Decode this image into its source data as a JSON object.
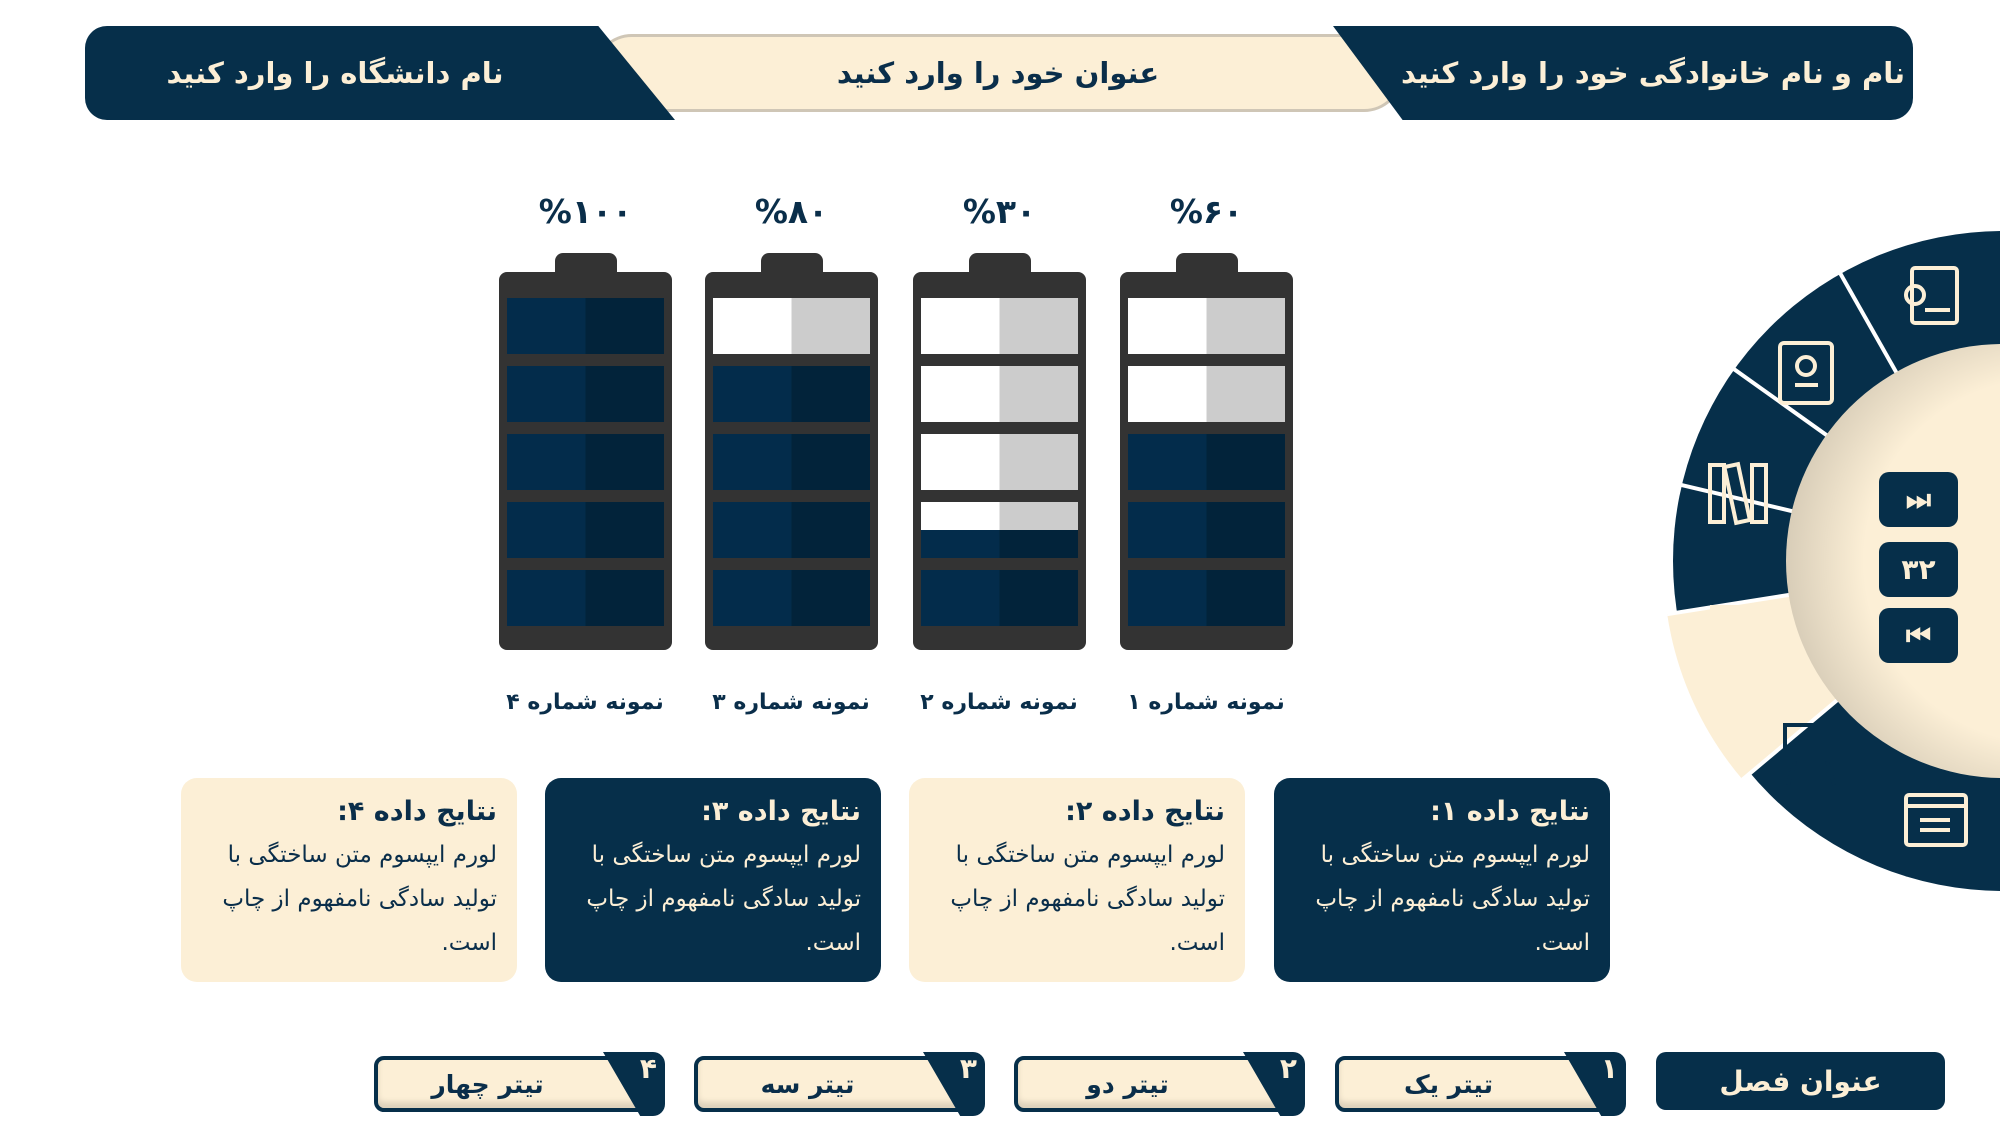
{
  "header": {
    "university": "نام دانشگاه را وارد کنید",
    "title": "عنوان خود را وارد کنید",
    "author": "نام و نام خانوادگی خود را وارد کنید"
  },
  "batteries": [
    {
      "label": "نمونه شماره ۱",
      "percent_label": "%۶۰",
      "value": 60
    },
    {
      "label": "نمونه شماره ۲",
      "percent_label": "%۳۰",
      "value": 30
    },
    {
      "label": "نمونه شماره ۳",
      "percent_label": "%۸۰",
      "value": 80
    },
    {
      "label": "نمونه شماره ۴",
      "percent_label": "%۱۰۰",
      "value": 100
    }
  ],
  "cards": [
    {
      "title": "نتایج داده ۱:",
      "text": "لورم ایپسوم متن ساختگی با تولید سادگی نامفهوم از چاپ است."
    },
    {
      "title": "نتایج داده ۲:",
      "text": "لورم ایپسوم متن ساختگی با تولید سادگی نامفهوم از چاپ است."
    },
    {
      "title": "نتایج داده ۳:",
      "text": "لورم ایپسوم متن ساختگی با تولید سادگی نامفهوم از چاپ است."
    },
    {
      "title": "نتایج داده ۴:",
      "text": "لورم ایپسوم متن ساختگی با تولید سادگی نامفهوم از چاپ است."
    }
  ],
  "footer": {
    "chapter": "عنوان فصل",
    "tabs": [
      {
        "num": "۱",
        "label": "تیتر یک"
      },
      {
        "num": "۲",
        "label": "تیتر دو"
      },
      {
        "num": "۳",
        "label": "تیتر سه"
      },
      {
        "num": "۴",
        "label": "تیتر چهار"
      }
    ]
  },
  "nav": {
    "page": "۳۲",
    "next_icon": "fast-forward-icon",
    "prev_icon": "fast-backward-icon",
    "menu_icons": [
      "gear-document-icon",
      "gear-notebook-icon",
      "binders-icon",
      "laptop-chart-icon",
      "presentation-board-icon",
      "browser-list-icon"
    ],
    "active_item": 4
  },
  "colors": {
    "navy": "#062f4a",
    "beige": "#fcefd6",
    "battery": "#333333"
  }
}
